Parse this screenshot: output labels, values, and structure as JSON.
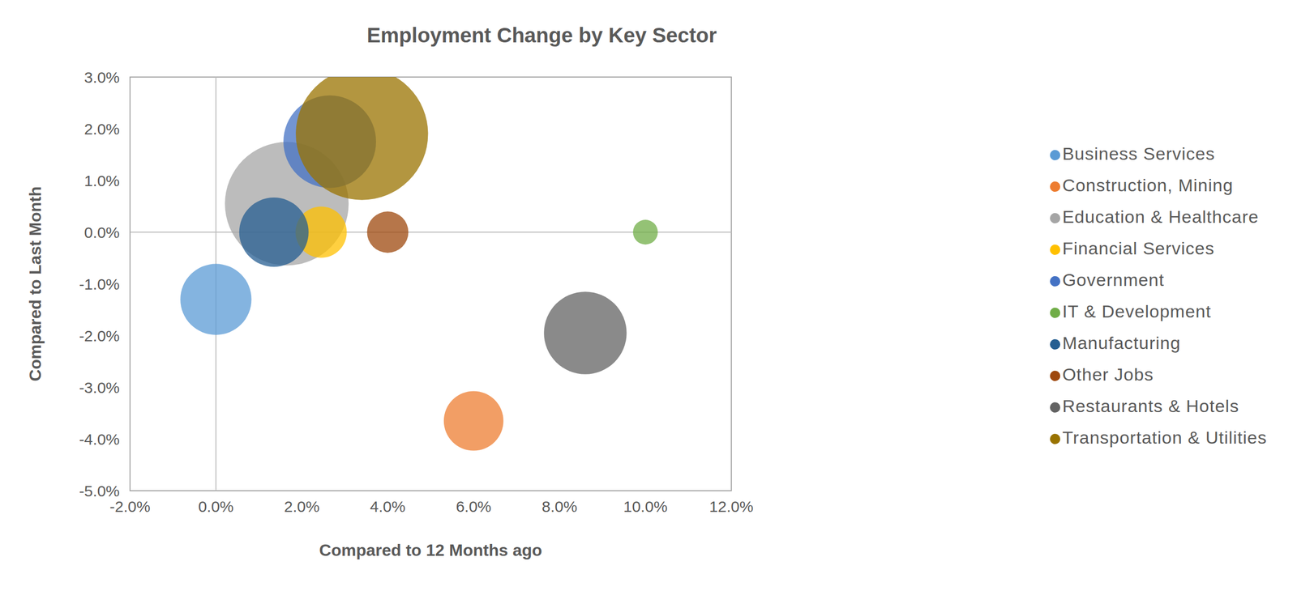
{
  "chart_data": {
    "type": "bubble",
    "title": "Employment Change by Key Sector",
    "x_label": "Compared to 12 Months ago",
    "y_label": "Compared to Last Month",
    "xlim": [
      -2,
      12
    ],
    "xticks": [
      {
        "value": -2,
        "label": "-2.0%"
      },
      {
        "value": 0,
        "label": "0.0%"
      },
      {
        "value": 2,
        "label": "2.0%"
      },
      {
        "value": 4,
        "label": "4.0%"
      },
      {
        "value": 6,
        "label": "6.0%"
      },
      {
        "value": 8,
        "label": "8.0%"
      },
      {
        "value": 10,
        "label": "10.0%"
      },
      {
        "value": 12,
        "label": "12.0%"
      }
    ],
    "ylim": [
      -5,
      3
    ],
    "yticks": [
      {
        "value": -5,
        "label": "-5.0%"
      },
      {
        "value": -4,
        "label": "-4.0%"
      },
      {
        "value": -3,
        "label": "-3.0%"
      },
      {
        "value": -2,
        "label": "-2.0%"
      },
      {
        "value": -1,
        "label": "-1.0%"
      },
      {
        "value": 0,
        "label": "0.0%"
      },
      {
        "value": 1,
        "label": "1.0%"
      },
      {
        "value": 2,
        "label": "2.0%"
      },
      {
        "value": 3,
        "label": "3.0%"
      }
    ],
    "grid": false,
    "legend": "right",
    "series": [
      {
        "name": "Business Services",
        "color": "#5B9BD5",
        "x": [
          0.0
        ],
        "values": [
          -1.3
        ],
        "sizes": [
          1850
        ]
      },
      {
        "name": "Construction, Mining",
        "color": "#ED7D31",
        "x": [
          6.0
        ],
        "values": [
          -3.65
        ],
        "sizes": [
          1300
        ]
      },
      {
        "name": "Education & Healthcare",
        "color": "#A5A5A5",
        "x": [
          1.65
        ],
        "values": [
          0.55
        ],
        "sizes": [
          5600
        ]
      },
      {
        "name": "Financial Services",
        "color": "#FFC000",
        "x": [
          2.45
        ],
        "values": [
          0.0
        ],
        "sizes": [
          960
        ]
      },
      {
        "name": "Government",
        "color": "#4472C4",
        "x": [
          2.65
        ],
        "values": [
          1.75
        ],
        "sizes": [
          3140
        ]
      },
      {
        "name": "IT & Development",
        "color": "#70AD47",
        "x": [
          10.0
        ],
        "values": [
          0.0
        ],
        "sizes": [
          225
        ]
      },
      {
        "name": "Manufacturing",
        "color": "#255E91",
        "x": [
          1.35
        ],
        "values": [
          0.0
        ],
        "sizes": [
          1760
        ]
      },
      {
        "name": "Other Jobs",
        "color": "#9E480E",
        "x": [
          4.0
        ],
        "values": [
          0.0
        ],
        "sizes": [
          625
        ]
      },
      {
        "name": "Restaurants & Hotels",
        "color": "#636363",
        "x": [
          8.6
        ],
        "values": [
          -1.95
        ],
        "sizes": [
          2500
        ]
      },
      {
        "name": "Transportation & Utilities",
        "color": "#997300",
        "x": [
          3.4
        ],
        "values": [
          1.9
        ],
        "sizes": [
          6400
        ]
      }
    ]
  }
}
